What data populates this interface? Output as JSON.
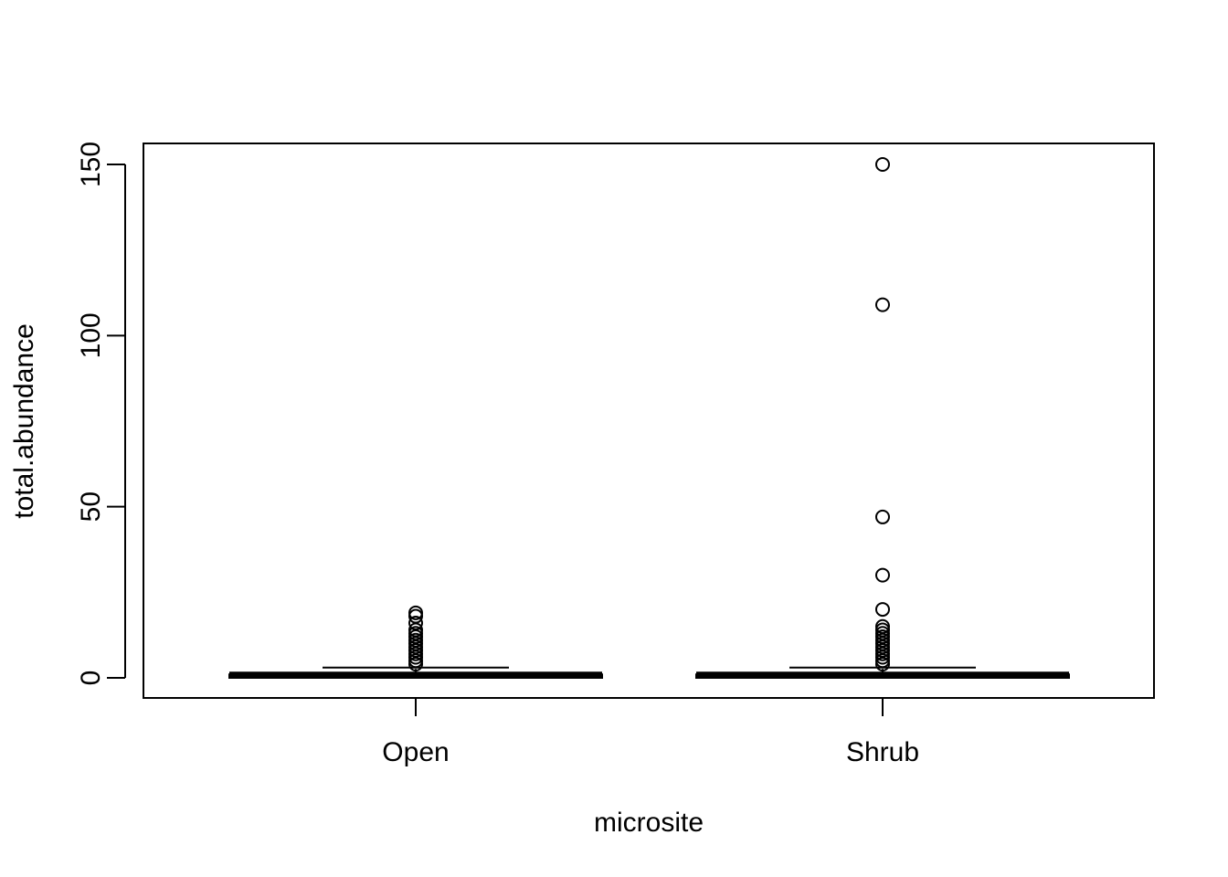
{
  "chart_data": {
    "type": "box",
    "title": "",
    "xlabel": "microsite",
    "ylabel": "total.abundance",
    "categories": [
      "Open",
      "Shrub"
    ],
    "ylim": [
      -6,
      156
    ],
    "yticks": [
      0,
      50,
      100,
      150
    ],
    "grid": false,
    "series": [
      {
        "category": "Open",
        "min": 0,
        "q1": 0,
        "median": 1,
        "q3": 1,
        "whisker_high": 3,
        "outliers": [
          4,
          5,
          6,
          7,
          8,
          9,
          10,
          11,
          12,
          13,
          14,
          16,
          18,
          19
        ]
      },
      {
        "category": "Shrub",
        "min": 0,
        "q1": 0,
        "median": 1,
        "q3": 1,
        "whisker_high": 3,
        "outliers": [
          4,
          5,
          6,
          7,
          8,
          9,
          10,
          11,
          12,
          13,
          14,
          15,
          20,
          30,
          47,
          109,
          150
        ]
      }
    ]
  }
}
